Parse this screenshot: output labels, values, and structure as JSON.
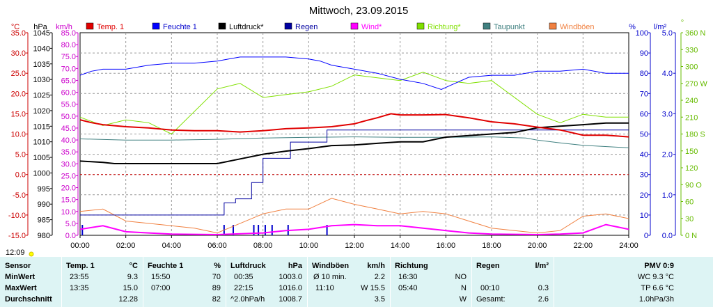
{
  "title": "Mittwoch, 23.09.2015",
  "time_label": "12:09",
  "legend": [
    {
      "label": "Temp. 1",
      "color": "#e00000"
    },
    {
      "label": "Feuchte 1",
      "color": "#0000ff"
    },
    {
      "label": "Luftdruck*",
      "color": "#000000"
    },
    {
      "label": "Regen",
      "color": "#0000a0"
    },
    {
      "label": "Wind*",
      "color": "#ff00ff"
    },
    {
      "label": "Richtung*",
      "color": "#80e000"
    },
    {
      "label": "Taupunkt",
      "color": "#408080"
    },
    {
      "label": "Windböen",
      "color": "#f08040"
    }
  ],
  "axes": {
    "temp_unit": "°C",
    "press_unit": "hPa",
    "wind_unit": "km/h",
    "hum_unit": "%",
    "rain_unit": "l/m²",
    "dir_unit": "°",
    "temp_ticks": [
      "35.0",
      "30.0",
      "25.0",
      "20.0",
      "15.0",
      "10.0",
      "5.0",
      "0.0",
      "-5.0",
      "-10.0",
      "-15.0"
    ],
    "press_ticks": [
      "1045",
      "1040",
      "1035",
      "1030",
      "1025",
      "1020",
      "1015",
      "1010",
      "1005",
      "1000",
      "995",
      "990",
      "985",
      "980"
    ],
    "wind_ticks": [
      "85.0",
      "80.0",
      "75.0",
      "70.0",
      "65.0",
      "60.0",
      "55.0",
      "50.0",
      "45.0",
      "40.0",
      "35.0",
      "30.0",
      "25.0",
      "20.0",
      "15.0",
      "10.0",
      "5.0",
      "0.0"
    ],
    "hum_ticks": [
      "100",
      "90",
      "80",
      "70",
      "60",
      "50",
      "40",
      "30",
      "20",
      "10",
      "0"
    ],
    "rain_ticks": [
      "5.0",
      "4.0",
      "3.0",
      "2.0",
      "1.0",
      "0.0"
    ],
    "dir_ticks": [
      "360 N",
      "330",
      "300",
      "270 W",
      "240",
      "210",
      "180 S",
      "150",
      "120",
      "90 O",
      "60",
      "30",
      "0 N"
    ],
    "x_ticks": [
      "00:00",
      "02:00",
      "04:00",
      "06:00",
      "08:00",
      "10:00",
      "12:00",
      "14:00",
      "16:00",
      "18:00",
      "20:00",
      "22:00",
      "24:00"
    ],
    "colors": {
      "temp": "#cc0000",
      "press": "#000000",
      "wind": "#cc00cc",
      "hum": "#0000cc",
      "rain": "#0000cc",
      "dir": "#66bb00"
    }
  },
  "chart_data": {
    "type": "line",
    "title": "Mittwoch, 23.09.2015",
    "x_unit": "hour of day",
    "xlim": [
      0,
      24
    ],
    "series": [
      {
        "name": "Temp. 1",
        "axis": "°C",
        "ylim": [
          -15,
          35
        ],
        "x": [
          0,
          0.5,
          1,
          2,
          3,
          4,
          5,
          6,
          7,
          8,
          9,
          10,
          11,
          12,
          12.5,
          13,
          13.6,
          14,
          15,
          16,
          17,
          18,
          19,
          20,
          21,
          22,
          23,
          24
        ],
        "y": [
          13.5,
          12.8,
          12.3,
          11.8,
          11.5,
          11.0,
          10.8,
          10.8,
          10.5,
          10.8,
          11.3,
          11.5,
          11.8,
          12.5,
          13.3,
          14.0,
          15.0,
          14.7,
          14.7,
          14.8,
          14.0,
          13.0,
          12.5,
          11.7,
          11.0,
          9.7,
          9.7,
          9.3
        ]
      },
      {
        "name": "Feuchte 1",
        "axis": "%",
        "ylim": [
          0,
          100
        ],
        "x": [
          0,
          0.5,
          1,
          2,
          3,
          4,
          5,
          6,
          6.5,
          7,
          8,
          9,
          10,
          10.5,
          11,
          12,
          13,
          14,
          15,
          15.8,
          16,
          17,
          18,
          19,
          20,
          21,
          22,
          23,
          24
        ],
        "y": [
          79,
          81,
          82,
          82,
          84,
          85,
          85,
          86,
          87,
          88,
          88,
          88,
          87,
          86,
          84,
          82,
          80,
          77,
          75,
          72,
          73,
          78,
          79,
          79,
          81,
          81,
          82,
          80,
          80
        ]
      },
      {
        "name": "Luftdruck*",
        "axis": "hPa",
        "ylim": [
          980,
          1045
        ],
        "x": [
          0,
          1,
          1.5,
          2,
          3,
          4,
          5,
          6,
          7,
          8,
          9,
          10,
          11,
          12,
          13,
          14,
          15,
          16,
          17,
          18,
          19,
          20,
          21,
          22,
          23,
          24
        ],
        "y": [
          1003.8,
          1003.4,
          1003.0,
          1003.0,
          1003.0,
          1003.0,
          1003.0,
          1003.0,
          1004.5,
          1006.0,
          1007.0,
          1007.8,
          1008.8,
          1009.0,
          1009.5,
          1010.0,
          1010.0,
          1011.5,
          1012.0,
          1012.5,
          1013.0,
          1014.5,
          1015.0,
          1015.5,
          1016.0,
          1016.0
        ]
      },
      {
        "name": "Regen",
        "axis": "l/m²",
        "ylim": [
          0,
          5
        ],
        "type": "step",
        "x": [
          0,
          6,
          6.3,
          6.8,
          7.5,
          8,
          9.2,
          10.8,
          12,
          16,
          18,
          24
        ],
        "y": [
          0.5,
          0.5,
          0.8,
          0.9,
          1.3,
          1.9,
          2.3,
          2.6,
          2.6,
          2.6,
          2.6,
          2.6
        ]
      },
      {
        "name": "Taupunkt",
        "axis": "°C",
        "ylim": [
          -15,
          35
        ],
        "x": [
          0,
          2,
          4,
          6,
          8,
          10,
          12,
          14,
          16,
          18,
          19.5,
          20,
          21,
          22,
          24
        ],
        "y": [
          8.8,
          8.5,
          8.5,
          8.7,
          9.0,
          9.2,
          9.3,
          9.2,
          9.2,
          9.3,
          9.0,
          8.5,
          7.8,
          7.2,
          6.6
        ]
      },
      {
        "name": "Richtung*",
        "axis": "°",
        "ylim": [
          0,
          360
        ],
        "x": [
          0,
          1,
          2,
          3,
          4,
          6,
          7,
          8,
          9,
          10,
          11,
          12,
          13,
          14,
          15,
          16,
          17,
          18,
          20,
          21,
          22,
          23,
          24
        ],
        "y": [
          210,
          195,
          205,
          200,
          180,
          260,
          270,
          245,
          250,
          255,
          265,
          285,
          280,
          275,
          290,
          275,
          270,
          275,
          215,
          200,
          215,
          210,
          210
        ]
      },
      {
        "name": "Wind*",
        "axis": "km/h",
        "ylim": [
          0,
          85
        ],
        "x": [
          0,
          1,
          2,
          3,
          4,
          6,
          8,
          9,
          10,
          11,
          12,
          13,
          14,
          15,
          16,
          17,
          18,
          20,
          21,
          22,
          23,
          24
        ],
        "y": [
          2.5,
          4.0,
          1.5,
          1.0,
          0.5,
          0.3,
          1.0,
          2.0,
          2.5,
          4.0,
          4.5,
          4.0,
          4.0,
          3.0,
          2.0,
          1.0,
          0.5,
          0.3,
          0.5,
          1.0,
          4.5,
          2.5
        ]
      },
      {
        "name": "Windböen",
        "axis": "km/h",
        "ylim": [
          0,
          85
        ],
        "x": [
          0,
          1,
          2,
          3,
          4,
          5,
          6,
          7,
          8,
          9,
          10,
          11,
          12,
          13,
          14,
          15,
          16,
          17,
          18,
          19,
          20,
          21,
          22,
          23,
          24
        ],
        "y": [
          10,
          11,
          6,
          5,
          4,
          3,
          1,
          5,
          9,
          11,
          11,
          15.5,
          13,
          11,
          9,
          10,
          9,
          6,
          3,
          2,
          1,
          2,
          8,
          9,
          7
        ]
      }
    ],
    "rain_events": {
      "x": [
        0.1,
        6.3,
        6.7,
        7.6,
        7.8,
        8.1,
        8.4,
        9.1,
        10.8
      ],
      "y": [
        1,
        1,
        1,
        1,
        1,
        1,
        1,
        1,
        1
      ]
    }
  },
  "stats": {
    "headers": {
      "sensor": "Sensor",
      "temp": "Temp. 1",
      "temp_unit": "°C",
      "hum": "Feuchte 1",
      "hum_unit": "%",
      "press": "Luftdruck",
      "press_unit": "hPa",
      "gust": "Windböen",
      "gust_unit": "km/h",
      "dir": "Richtung",
      "rain": "Regen",
      "rain_unit": "l/m²",
      "pmv": "PMV 0:9"
    },
    "rows": [
      {
        "label": "MinWert",
        "temp_time": "23:55",
        "temp_val": "9.3",
        "hum_time": "15:50",
        "hum_val": "70",
        "press_time": "00:35",
        "press_val": "1003.0",
        "gust_time": "Ø 10 min.",
        "gust_val": "2.2",
        "dir_time": "16:30",
        "dir_val": "NO",
        "rain_time": "",
        "rain_val": "",
        "pmv": "WC 9.3 °C"
      },
      {
        "label": "MaxWert",
        "temp_time": "13:35",
        "temp_val": "15.0",
        "hum_time": "07:00",
        "hum_val": "89",
        "press_time": "22:15",
        "press_val": "1016.0",
        "gust_time": "11:10",
        "gust_val": "W 15.5",
        "dir_time": "05:40",
        "dir_val": "N",
        "rain_time": "00:10",
        "rain_val": "0.3",
        "pmv": "TP 6.6 °C"
      },
      {
        "label": "Durchschnitt",
        "temp_time": "",
        "temp_val": "12.28",
        "hum_time": "",
        "hum_val": "82",
        "press_time": "^2.0hPa/h",
        "press_val": "1008.7",
        "gust_time": "",
        "gust_val": "3.5",
        "dir_time": "",
        "dir_val": "W",
        "rain_time": "Gesamt:",
        "rain_val": "2.6",
        "pmv": "1.0hPa/3h"
      }
    ]
  }
}
